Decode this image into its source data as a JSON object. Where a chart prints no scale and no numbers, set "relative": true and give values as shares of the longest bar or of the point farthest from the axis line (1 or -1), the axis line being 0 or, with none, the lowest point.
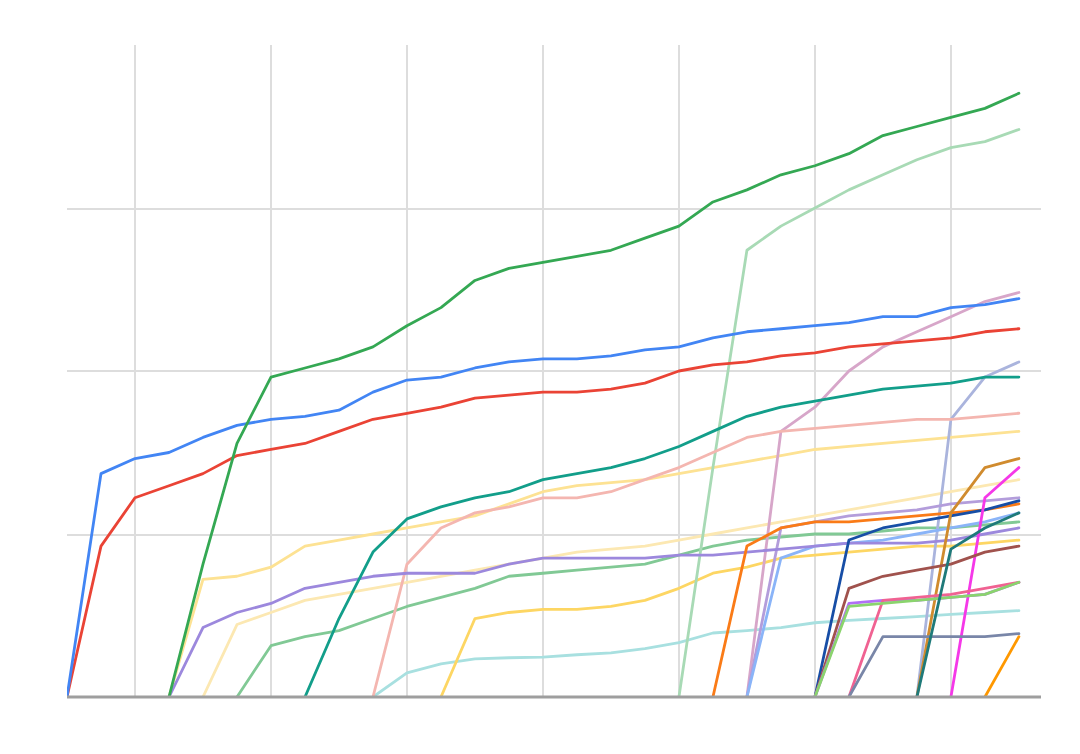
{
  "chart_data": {
    "type": "line",
    "relative": true,
    "grid": true,
    "categories": [
      null,
      null,
      null,
      null,
      null,
      null,
      null,
      null,
      null,
      null,
      null,
      null,
      null,
      null,
      null,
      null,
      null,
      null,
      null,
      null,
      null,
      null,
      null,
      null,
      null,
      null,
      null,
      null,
      null
    ],
    "series": [
      {
        "color": "#fde293",
        "values": [
          null,
          null,
          null,
          0,
          0.195,
          0.2,
          0.215,
          0.25,
          0.26,
          0.27,
          0.28,
          0.29,
          0.3,
          0.32,
          0.34,
          0.35,
          0.355,
          0.36,
          0.37,
          0.38,
          0.39,
          0.4,
          0.41,
          0.415,
          0.42,
          0.425,
          0.43,
          0.435,
          0.44
        ]
      },
      {
        "color": "#fce8b2",
        "values": [
          null,
          null,
          null,
          null,
          0,
          0.12,
          0.14,
          0.16,
          0.17,
          0.18,
          0.19,
          0.2,
          0.21,
          0.22,
          0.23,
          0.24,
          0.245,
          0.25,
          0.26,
          0.27,
          0.28,
          0.29,
          0.3,
          0.31,
          0.32,
          0.33,
          0.34,
          0.35,
          0.36
        ]
      },
      {
        "color": "#a8e0e0",
        "values": [
          null,
          null,
          null,
          null,
          null,
          null,
          null,
          null,
          null,
          0,
          0.04,
          0.055,
          0.063,
          0.065,
          0.066,
          0.07,
          0.073,
          0.08,
          0.09,
          0.106,
          0.11,
          0.115,
          0.123,
          0.127,
          0.13,
          0.133,
          0.137,
          0.14,
          0.143
        ]
      },
      {
        "color": "#81c995",
        "values": [
          null,
          null,
          null,
          null,
          null,
          0,
          0.085,
          0.1,
          0.11,
          0.13,
          0.15,
          0.165,
          0.18,
          0.2,
          0.205,
          0.21,
          0.215,
          0.22,
          0.235,
          0.25,
          0.26,
          0.265,
          0.27,
          0.27,
          0.275,
          0.28,
          0.28,
          0.285,
          0.29
        ]
      },
      {
        "color": "#fdd663",
        "values": [
          null,
          null,
          null,
          null,
          null,
          null,
          null,
          null,
          null,
          null,
          null,
          0,
          0.13,
          0.14,
          0.145,
          0.145,
          0.15,
          0.16,
          0.18,
          0.205,
          0.215,
          0.23,
          0.235,
          0.24,
          0.245,
          0.25,
          0.25,
          0.255,
          0.26
        ]
      },
      {
        "color": "#a8dab5",
        "values": [
          null,
          null,
          null,
          null,
          null,
          null,
          null,
          null,
          null,
          null,
          null,
          null,
          null,
          null,
          null,
          null,
          null,
          null,
          0,
          0.38,
          0.74,
          0.78,
          0.81,
          0.84,
          0.865,
          0.89,
          0.91,
          0.92,
          0.94
        ]
      },
      {
        "color": "#d7a6c9",
        "values": [
          null,
          null,
          null,
          null,
          null,
          null,
          null,
          null,
          null,
          null,
          null,
          null,
          null,
          null,
          null,
          null,
          null,
          null,
          null,
          null,
          0,
          0.44,
          0.48,
          0.54,
          0.58,
          0.605,
          0.63,
          0.655,
          0.67
        ]
      },
      {
        "color": "#aab4dd",
        "values": [
          null,
          null,
          null,
          null,
          null,
          null,
          null,
          null,
          null,
          null,
          null,
          null,
          null,
          null,
          null,
          null,
          null,
          null,
          null,
          null,
          null,
          null,
          null,
          null,
          null,
          0,
          0.46,
          0.53,
          0.555
        ]
      },
      {
        "color": "#b39ddb",
        "values": [
          null,
          null,
          null,
          null,
          null,
          null,
          null,
          null,
          null,
          null,
          null,
          null,
          null,
          null,
          null,
          null,
          null,
          null,
          null,
          null,
          0,
          0.28,
          0.29,
          0.3,
          0.305,
          0.31,
          0.32,
          0.325,
          0.33
        ]
      },
      {
        "color": "#8ab4f8",
        "values": [
          null,
          null,
          null,
          null,
          null,
          null,
          null,
          null,
          null,
          null,
          null,
          null,
          null,
          null,
          null,
          null,
          null,
          null,
          null,
          null,
          0,
          0.23,
          0.25,
          0.255,
          0.26,
          0.27,
          0.28,
          0.29,
          0.305
        ]
      },
      {
        "color": "#f4b6b0",
        "values": [
          null,
          null,
          null,
          null,
          null,
          null,
          null,
          null,
          null,
          0,
          0.22,
          0.28,
          0.305,
          0.315,
          0.33,
          0.33,
          0.34,
          0.36,
          0.38,
          0.405,
          0.43,
          0.44,
          0.445,
          0.45,
          0.455,
          0.46,
          0.46,
          0.465,
          0.47
        ]
      },
      {
        "color": "#9c88dd",
        "values": [
          null,
          null,
          null,
          0,
          0.115,
          0.14,
          0.155,
          0.18,
          0.19,
          0.2,
          0.205,
          0.205,
          0.205,
          0.22,
          0.23,
          0.23,
          0.23,
          0.23,
          0.235,
          0.235,
          0.24,
          0.245,
          0.25,
          0.255,
          0.255,
          0.255,
          0.26,
          0.27,
          0.28
        ]
      },
      {
        "color": "#fa7b17",
        "values": [
          null,
          null,
          null,
          null,
          null,
          null,
          null,
          null,
          null,
          null,
          null,
          null,
          null,
          null,
          null,
          null,
          null,
          null,
          null,
          0,
          0.25,
          0.28,
          0.29,
          0.29,
          0.295,
          0.3,
          0.305,
          0.31,
          0.32
        ]
      },
      {
        "color": "#174ea6",
        "values": [
          null,
          null,
          null,
          null,
          null,
          null,
          null,
          null,
          null,
          null,
          null,
          null,
          null,
          null,
          null,
          null,
          null,
          null,
          null,
          null,
          null,
          null,
          0,
          0.26,
          0.28,
          0.29,
          0.3,
          0.31,
          0.325
        ]
      },
      {
        "color": "#d08b2e",
        "values": [
          null,
          null,
          null,
          null,
          null,
          null,
          null,
          null,
          null,
          null,
          null,
          null,
          null,
          null,
          null,
          null,
          null,
          null,
          null,
          null,
          null,
          null,
          null,
          null,
          null,
          0,
          0.305,
          0.38,
          0.395
        ]
      },
      {
        "color": "#f538e8",
        "values": [
          null,
          null,
          null,
          null,
          null,
          null,
          null,
          null,
          null,
          null,
          null,
          null,
          null,
          null,
          null,
          null,
          null,
          null,
          null,
          null,
          null,
          null,
          null,
          null,
          null,
          null,
          0,
          0.33,
          0.38
        ]
      },
      {
        "color": "#a0524d",
        "values": [
          null,
          null,
          null,
          null,
          null,
          null,
          null,
          null,
          null,
          null,
          null,
          null,
          null,
          null,
          null,
          null,
          null,
          null,
          null,
          null,
          null,
          null,
          0,
          0.18,
          0.2,
          0.21,
          0.22,
          0.24,
          0.25
        ]
      },
      {
        "color": "#b06ff5",
        "values": [
          null,
          null,
          null,
          null,
          null,
          null,
          null,
          null,
          null,
          null,
          null,
          null,
          null,
          null,
          null,
          null,
          null,
          null,
          null,
          null,
          null,
          null,
          0,
          0.155,
          0.16,
          0.16,
          0.165,
          0.17,
          0.19
        ]
      },
      {
        "color": "#f06292",
        "values": [
          null,
          null,
          null,
          null,
          null,
          null,
          null,
          null,
          null,
          null,
          null,
          null,
          null,
          null,
          null,
          null,
          null,
          null,
          null,
          null,
          null,
          null,
          null,
          0,
          0.16,
          0.165,
          0.17,
          0.18,
          0.19
        ]
      },
      {
        "color": "#8ad46d",
        "values": [
          null,
          null,
          null,
          null,
          null,
          null,
          null,
          null,
          null,
          null,
          null,
          null,
          null,
          null,
          null,
          null,
          null,
          null,
          null,
          null,
          null,
          null,
          0,
          0.15,
          0.155,
          0.16,
          0.165,
          0.17,
          0.19
        ]
      },
      {
        "color": "#7986a8",
        "values": [
          null,
          null,
          null,
          null,
          null,
          null,
          null,
          null,
          null,
          null,
          null,
          null,
          null,
          null,
          null,
          null,
          null,
          null,
          null,
          null,
          null,
          null,
          null,
          0,
          0.1,
          0.1,
          0.1,
          0.1,
          0.105
        ]
      },
      {
        "color": "#1f7a7a",
        "values": [
          null,
          null,
          null,
          null,
          null,
          null,
          null,
          null,
          null,
          null,
          null,
          null,
          null,
          null,
          null,
          null,
          null,
          null,
          null,
          null,
          null,
          null,
          null,
          null,
          null,
          0,
          0.245,
          0.28,
          0.305
        ]
      },
      {
        "color": "#ff9800",
        "values": [
          null,
          null,
          null,
          null,
          null,
          null,
          null,
          null,
          null,
          null,
          null,
          null,
          null,
          null,
          null,
          null,
          null,
          null,
          null,
          null,
          null,
          null,
          null,
          null,
          null,
          null,
          null,
          0,
          0.1
        ]
      },
      {
        "color": "#129e8a",
        "values": [
          null,
          null,
          null,
          null,
          null,
          null,
          null,
          0,
          0.13,
          0.24,
          0.295,
          0.315,
          0.33,
          0.34,
          0.36,
          0.37,
          0.38,
          0.395,
          0.415,
          0.44,
          0.465,
          0.48,
          0.49,
          0.5,
          0.51,
          0.515,
          0.52,
          0.53,
          0.53
        ]
      },
      {
        "color": "#ea4335",
        "values": [
          0,
          0.25,
          0.33,
          0.35,
          0.37,
          0.4,
          0.41,
          0.42,
          0.44,
          0.46,
          0.47,
          0.48,
          0.495,
          0.5,
          0.505,
          0.505,
          0.51,
          0.52,
          0.54,
          0.55,
          0.555,
          0.565,
          0.57,
          0.58,
          0.585,
          0.59,
          0.595,
          0.605,
          0.61
        ]
      },
      {
        "color": "#4285f4",
        "values": [
          0,
          0.37,
          0.395,
          0.405,
          0.43,
          0.45,
          0.46,
          0.465,
          0.475,
          0.505,
          0.525,
          0.53,
          0.545,
          0.555,
          0.56,
          0.56,
          0.565,
          0.575,
          0.58,
          0.595,
          0.605,
          0.61,
          0.615,
          0.62,
          0.63,
          0.63,
          0.645,
          0.65,
          0.66
        ]
      },
      {
        "color": "#34a853",
        "values": [
          null,
          null,
          null,
          0,
          0.22,
          0.42,
          0.53,
          0.545,
          0.56,
          0.58,
          0.615,
          0.645,
          0.69,
          0.71,
          0.72,
          0.73,
          0.74,
          0.76,
          0.78,
          0.82,
          0.84,
          0.865,
          0.88,
          0.9,
          0.93,
          0.945,
          0.96,
          0.975,
          1.0
        ]
      }
    ]
  }
}
